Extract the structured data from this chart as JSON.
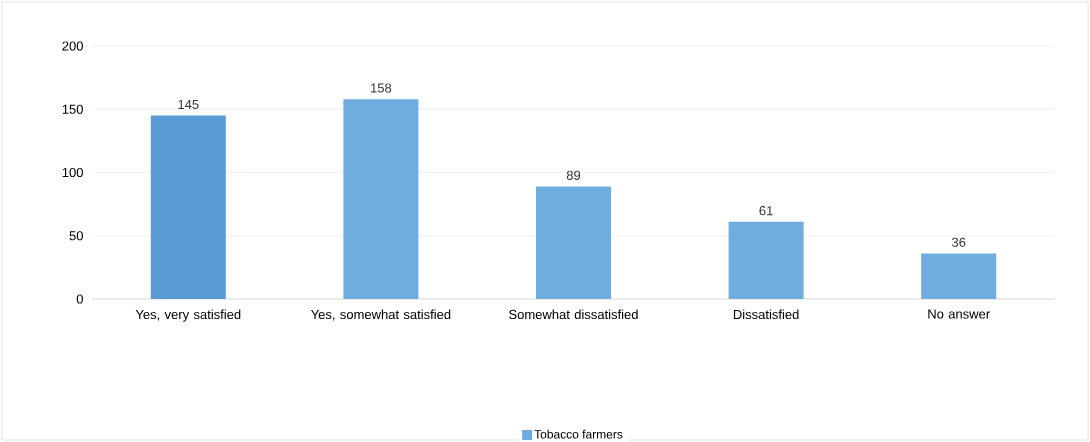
{
  "chart_data": {
    "type": "bar",
    "categories": [
      "Yes, very satisfied",
      "Yes, somewhat satisfied",
      "Somewhat dissatisfied",
      "Dissatisfied",
      "No answer"
    ],
    "series": [
      {
        "name": "Tobacco farmers",
        "color": "#6fade0",
        "colors": [
          "#5b9bd5",
          "#6fade0",
          "#6fade0",
          "#6fade0",
          "#6fade0"
        ],
        "values": [
          145,
          158,
          89,
          61,
          36
        ]
      }
    ],
    "ylim": [
      0,
      200
    ],
    "yticks": [
      0,
      50,
      100,
      150,
      200
    ],
    "grid": "y",
    "legend": "bottom",
    "data_labels": true
  }
}
